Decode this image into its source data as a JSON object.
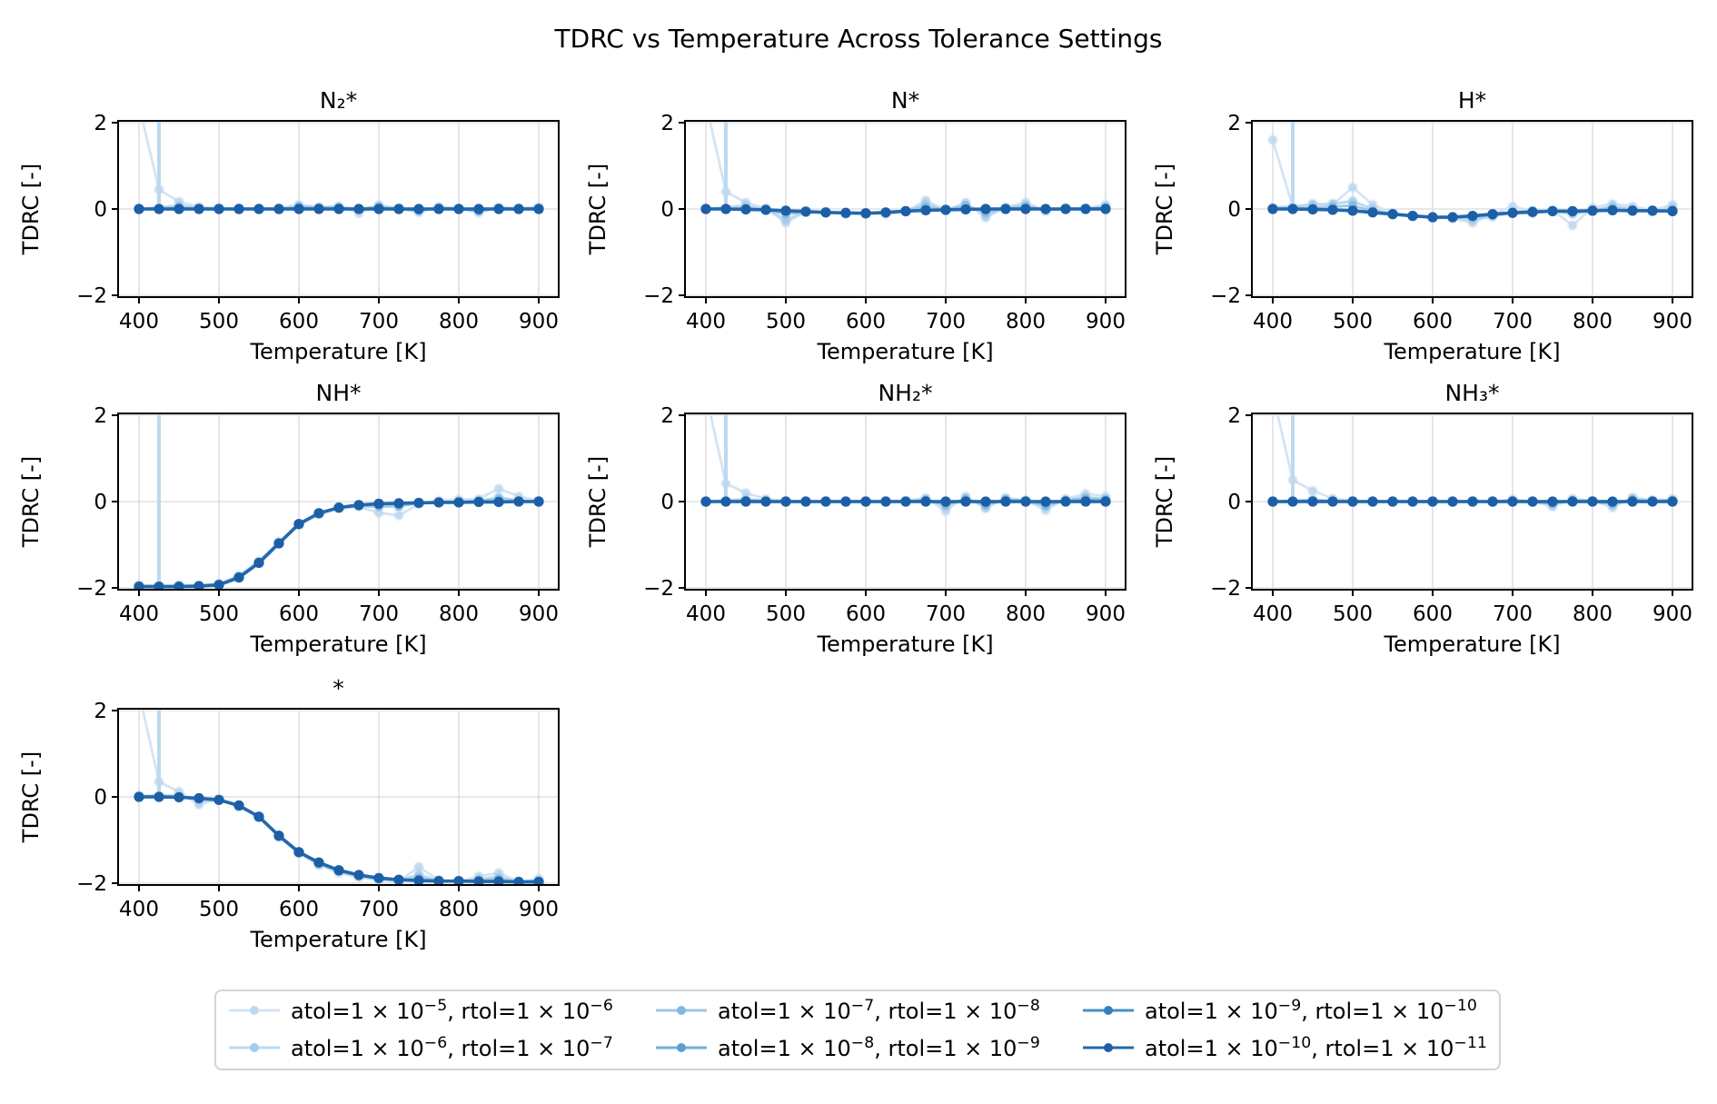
{
  "figure": {
    "title": "TDRC vs Temperature Across Tolerance Settings"
  },
  "style": {
    "grid_color": "#e0e0e0",
    "spine_color": "#000000",
    "background": "#ffffff",
    "line_colors": [
      "#d4e4f4",
      "#bdd9ef",
      "#9cc8e5",
      "#72b0d9",
      "#4690c4",
      "#2268ac"
    ],
    "marker_colors": [
      "#c0d8ee",
      "#a5cce9",
      "#81b9de",
      "#5a9fd0",
      "#3480bb",
      "#1c5fa7"
    ]
  },
  "legend": {
    "labels": [
      "atol=1 × 10^−5, rtol=1 × 10^−6",
      "atol=1 × 10^−6, rtol=1 × 10^−7",
      "atol=1 × 10^−7, rtol=1 × 10^−8",
      "atol=1 × 10^−8, rtol=1 × 10^−9",
      "atol=1 × 10^−9, rtol=1 × 10^−10",
      "atol=1 × 10^−10, rtol=1 × 10^−11"
    ]
  },
  "x_values": [
    400,
    425,
    450,
    475,
    500,
    525,
    550,
    575,
    600,
    625,
    650,
    675,
    700,
    725,
    750,
    775,
    800,
    825,
    850,
    875,
    900
  ],
  "chart_data": [
    {
      "type": "line",
      "title": "N₂*",
      "xlabel": "Temperature [K]",
      "ylabel": "TDRC [-]",
      "xticks": [
        400,
        500,
        600,
        700,
        800,
        900
      ],
      "yticks": [
        -2,
        0,
        2
      ],
      "ylim": [
        -2.05,
        2.05
      ],
      "series": [
        [
          2.4,
          0.45,
          0.17,
          0.05,
          0.02,
          0.01,
          0.01,
          0.02,
          0.1,
          0.05,
          0.07,
          -0.1,
          0.09,
          0.02,
          -0.08,
          0.05,
          0.02,
          -0.09,
          0.04,
          0.02,
          0.05
        ],
        [
          0,
          50,
          0.08,
          0.02,
          0.01,
          0,
          0,
          0,
          0.03,
          0.02,
          0.02,
          0,
          0.04,
          0,
          -0.03,
          0.02,
          0,
          -0.03,
          0.01,
          0,
          0.01
        ],
        [
          0,
          0,
          0.04,
          0.01,
          0,
          0,
          0,
          0,
          0.06,
          0.03,
          0.04,
          0,
          0.06,
          0,
          -0.04,
          0.03,
          0,
          -0.05,
          0.02,
          0,
          0.02
        ],
        [
          0,
          0,
          0.01,
          0,
          0,
          0,
          0,
          0,
          0.02,
          0.01,
          0.01,
          0,
          0.02,
          0,
          -0.01,
          0.01,
          0,
          -0.02,
          0.01,
          0,
          0.01
        ],
        [
          0,
          0,
          0,
          0,
          0,
          0,
          0,
          0,
          0,
          0,
          0,
          0,
          0,
          0,
          0,
          0,
          0,
          0,
          0,
          0,
          0
        ],
        [
          0,
          0,
          0,
          0,
          0,
          0,
          0,
          0,
          0,
          0,
          0,
          0,
          0,
          0,
          0,
          0,
          0,
          0,
          0,
          0,
          0
        ]
      ]
    },
    {
      "type": "line",
      "title": "N*",
      "xlabel": "Temperature [K]",
      "ylabel": "TDRC [-]",
      "xticks": [
        400,
        500,
        600,
        700,
        800,
        900
      ],
      "yticks": [
        -2,
        0,
        2
      ],
      "ylim": [
        -2.05,
        2.05
      ],
      "series": [
        [
          2.45,
          0.4,
          0.15,
          0.02,
          -0.32,
          -0.06,
          -0.06,
          -0.11,
          -0.1,
          -0.12,
          -0.06,
          0.2,
          -0.03,
          0.15,
          -0.2,
          0.04,
          0.15,
          -0.05,
          0.02,
          0.01,
          0.1
        ],
        [
          0,
          50,
          0.08,
          -0.01,
          -0.25,
          -0.07,
          -0.08,
          -0.1,
          -0.1,
          -0.09,
          -0.05,
          0.12,
          -0.02,
          0.1,
          -0.14,
          0.02,
          0.1,
          -0.03,
          0.01,
          0,
          0.06
        ],
        [
          0,
          0,
          0.02,
          -0.02,
          -0.12,
          -0.07,
          -0.08,
          -0.09,
          -0.1,
          -0.07,
          -0.04,
          0.05,
          -0.02,
          0.08,
          -0.08,
          0.01,
          0.06,
          -0.02,
          0,
          0,
          0.04
        ],
        [
          0,
          0,
          -0.01,
          -0.02,
          -0.04,
          -0.06,
          -0.08,
          -0.09,
          -0.1,
          -0.08,
          -0.05,
          -0.03,
          -0.02,
          -0.01,
          0,
          0,
          0,
          0,
          0,
          0,
          0
        ],
        [
          0,
          0,
          -0.01,
          -0.02,
          -0.04,
          -0.06,
          -0.08,
          -0.09,
          -0.1,
          -0.08,
          -0.05,
          -0.03,
          -0.02,
          -0.01,
          0,
          0,
          0,
          0,
          0,
          0,
          0
        ],
        [
          0,
          0,
          -0.01,
          -0.02,
          -0.04,
          -0.06,
          -0.08,
          -0.09,
          -0.1,
          -0.08,
          -0.05,
          -0.03,
          -0.02,
          -0.01,
          0,
          0,
          0,
          0,
          0,
          0,
          0
        ]
      ]
    },
    {
      "type": "line",
      "title": "H*",
      "xlabel": "Temperature [K]",
      "ylabel": "TDRC [-]",
      "xticks": [
        400,
        500,
        600,
        700,
        800,
        900
      ],
      "yticks": [
        -2,
        0,
        2
      ],
      "ylim": [
        -2.05,
        2.05
      ],
      "series": [
        [
          1.6,
          0.05,
          0.12,
          0.1,
          0.5,
          0.1,
          -0.1,
          -0.15,
          -0.2,
          -0.22,
          -0.32,
          -0.12,
          0.06,
          -0.05,
          -0.03,
          -0.38,
          0.03,
          0.12,
          0.06,
          -0.03,
          0.1
        ],
        [
          0.03,
          50,
          0.1,
          0.12,
          0.18,
          0,
          -0.12,
          -0.17,
          -0.2,
          -0.2,
          -0.25,
          -0.18,
          -0.08,
          -0.1,
          -0.05,
          -0.12,
          -0.04,
          0.06,
          0,
          -0.05,
          0.03
        ],
        [
          0,
          0.02,
          0.03,
          0.05,
          0.08,
          -0.05,
          -0.12,
          -0.16,
          -0.19,
          -0.18,
          -0.2,
          -0.15,
          -0.07,
          -0.04,
          -0.05,
          -0.08,
          -0.03,
          0.02,
          -0.02,
          -0.04,
          -0.02
        ],
        [
          0,
          0,
          -0.01,
          -0.02,
          -0.04,
          -0.08,
          -0.12,
          -0.16,
          -0.19,
          -0.19,
          -0.16,
          -0.12,
          -0.09,
          -0.07,
          -0.05,
          -0.05,
          -0.04,
          -0.03,
          -0.04,
          -0.04,
          -0.05
        ],
        [
          0,
          0,
          -0.01,
          -0.02,
          -0.04,
          -0.08,
          -0.12,
          -0.16,
          -0.19,
          -0.19,
          -0.16,
          -0.12,
          -0.09,
          -0.07,
          -0.05,
          -0.05,
          -0.04,
          -0.03,
          -0.04,
          -0.04,
          -0.05
        ],
        [
          0,
          0,
          -0.01,
          -0.02,
          -0.04,
          -0.08,
          -0.12,
          -0.16,
          -0.19,
          -0.19,
          -0.16,
          -0.12,
          -0.09,
          -0.07,
          -0.05,
          -0.05,
          -0.04,
          -0.03,
          -0.04,
          -0.04,
          -0.05
        ]
      ]
    },
    {
      "type": "line",
      "title": "NH*",
      "xlabel": "Temperature [K]",
      "ylabel": "TDRC [-]",
      "xticks": [
        400,
        500,
        600,
        700,
        800,
        900
      ],
      "yticks": [
        -2,
        0,
        2
      ],
      "ylim": [
        -2.05,
        2.05
      ],
      "series": [
        [
          -1.93,
          -1.95,
          -1.93,
          -1.94,
          -1.9,
          -1.71,
          -1.38,
          -0.93,
          -0.55,
          -0.3,
          -0.16,
          -0.12,
          -0.26,
          -0.32,
          -0.06,
          0.02,
          0.05,
          0.06,
          0.3,
          0.12,
          0.02
        ],
        [
          -1.97,
          50,
          -1.96,
          -1.96,
          -1.92,
          -1.75,
          -1.41,
          -0.96,
          -0.52,
          -0.27,
          -0.14,
          -0.09,
          -0.08,
          -0.12,
          -0.03,
          -0.01,
          0.01,
          0.01,
          0.1,
          0.03,
          0
        ],
        [
          -1.96,
          -1.97,
          -1.96,
          -1.95,
          -1.92,
          -1.74,
          -1.4,
          -0.95,
          -0.53,
          -0.28,
          -0.15,
          -0.1,
          -0.12,
          -0.1,
          -0.04,
          -0.02,
          0,
          0.02,
          0.05,
          0.02,
          0
        ],
        [
          -1.97,
          -1.97,
          -1.97,
          -1.96,
          -1.93,
          -1.76,
          -1.42,
          -0.97,
          -0.52,
          -0.27,
          -0.14,
          -0.08,
          -0.05,
          -0.04,
          -0.03,
          -0.02,
          -0.02,
          -0.01,
          -0.01,
          0,
          0
        ],
        [
          -1.97,
          -1.97,
          -1.97,
          -1.96,
          -1.93,
          -1.76,
          -1.42,
          -0.97,
          -0.52,
          -0.27,
          -0.14,
          -0.08,
          -0.05,
          -0.04,
          -0.03,
          -0.02,
          -0.02,
          -0.01,
          -0.01,
          0,
          0
        ],
        [
          -1.97,
          -1.97,
          -1.97,
          -1.96,
          -1.93,
          -1.76,
          -1.42,
          -0.97,
          -0.52,
          -0.27,
          -0.14,
          -0.08,
          -0.05,
          -0.04,
          -0.03,
          -0.02,
          -0.02,
          -0.01,
          -0.01,
          0,
          0
        ]
      ]
    },
    {
      "type": "line",
      "title": "NH₂*",
      "xlabel": "Temperature [K]",
      "ylabel": "TDRC [-]",
      "xticks": [
        400,
        500,
        600,
        700,
        800,
        900
      ],
      "yticks": [
        -2,
        0,
        2
      ],
      "ylim": [
        -2.05,
        2.05
      ],
      "series": [
        [
          2.5,
          0.42,
          0.2,
          0.06,
          0.02,
          0,
          0.01,
          0,
          0.02,
          0.01,
          0.02,
          0.08,
          -0.22,
          0.12,
          -0.16,
          0.09,
          0.03,
          -0.2,
          0.06,
          0.18,
          0.12
        ],
        [
          0,
          50,
          0.06,
          0.02,
          0,
          0,
          0,
          0,
          0,
          0,
          0,
          0.06,
          -0.12,
          0.08,
          -0.12,
          0.06,
          0.02,
          -0.12,
          0.04,
          0.1,
          0.06
        ],
        [
          0,
          0,
          0.03,
          0.01,
          0,
          0,
          0,
          0,
          0,
          0,
          0,
          0.04,
          -0.08,
          0.06,
          -0.08,
          0.05,
          0.02,
          -0.1,
          0.03,
          0.08,
          0.05
        ],
        [
          0,
          0,
          0.01,
          0,
          0,
          0,
          0,
          0,
          0,
          0,
          0,
          0.02,
          -0.03,
          0.02,
          -0.03,
          0.02,
          0.01,
          -0.04,
          0.01,
          0.03,
          0.02
        ],
        [
          0,
          0,
          0,
          0,
          0,
          0,
          0,
          0,
          0,
          0,
          0,
          0,
          0,
          0,
          0,
          0,
          0,
          0,
          0,
          0,
          0
        ],
        [
          0,
          0,
          0,
          0,
          0,
          0,
          0,
          0,
          0,
          0,
          0,
          0,
          0,
          0,
          0,
          0,
          0,
          0,
          0,
          0,
          0
        ]
      ]
    },
    {
      "type": "line",
      "title": "NH₃*",
      "xlabel": "Temperature [K]",
      "ylabel": "TDRC [-]",
      "xticks": [
        400,
        500,
        600,
        700,
        800,
        900
      ],
      "yticks": [
        -2,
        0,
        2
      ],
      "ylim": [
        -2.05,
        2.05
      ],
      "series": [
        [
          2.5,
          0.5,
          0.25,
          0.07,
          0.02,
          0,
          0,
          0,
          0.02,
          0,
          0.02,
          0,
          0.05,
          0,
          -0.12,
          0.06,
          0.02,
          -0.14,
          0.1,
          0.03,
          0.06
        ],
        [
          0,
          50,
          0.05,
          0.02,
          0,
          0,
          0,
          0,
          0,
          0,
          0,
          0,
          0.03,
          0,
          -0.07,
          0.04,
          0.01,
          -0.08,
          0.06,
          0.02,
          0.04
        ],
        [
          0,
          0,
          0.02,
          0.01,
          0,
          0,
          0,
          0,
          0,
          0,
          0,
          0,
          0.02,
          0,
          -0.05,
          0.03,
          0.01,
          -0.06,
          0.05,
          0.01,
          0.03
        ],
        [
          0,
          0,
          0.01,
          0,
          0,
          0,
          0,
          0,
          0,
          0,
          0,
          0,
          0.01,
          0,
          -0.02,
          0.01,
          0,
          -0.02,
          0.02,
          0,
          0.01
        ],
        [
          0,
          0,
          0,
          0,
          0,
          0,
          0,
          0,
          0,
          0,
          0,
          0,
          0,
          0,
          0,
          0,
          0,
          0,
          0,
          0,
          0
        ],
        [
          0,
          0,
          0,
          0,
          0,
          0,
          0,
          0,
          0,
          0,
          0,
          0,
          0,
          0,
          0,
          0,
          0,
          0,
          0,
          0,
          0
        ]
      ]
    },
    {
      "type": "line",
      "title": "*",
      "xlabel": "Temperature [K]",
      "ylabel": "TDRC [-]",
      "xticks": [
        400,
        500,
        600,
        700,
        800,
        900
      ],
      "yticks": [
        -2,
        0,
        2
      ],
      "ylim": [
        -2.05,
        2.05
      ],
      "series": [
        [
          2.4,
          0.35,
          0.12,
          -0.18,
          -0.05,
          -0.23,
          -0.45,
          -0.93,
          -1.3,
          -1.58,
          -1.76,
          -1.86,
          -1.93,
          -1.96,
          -1.62,
          -1.93,
          -1.96,
          -1.84,
          -1.76,
          -1.96,
          -1.9
        ],
        [
          0.02,
          50,
          0.04,
          -0.1,
          -0.07,
          -0.2,
          -0.47,
          -0.91,
          -1.29,
          -1.56,
          -1.73,
          -1.84,
          -1.91,
          -1.94,
          -1.8,
          -1.95,
          -1.96,
          -1.9,
          -1.85,
          -1.97,
          -1.93
        ],
        [
          0,
          0.02,
          0,
          -0.05,
          -0.08,
          -0.21,
          -0.46,
          -0.9,
          -1.28,
          -1.55,
          -1.72,
          -1.83,
          -1.9,
          -1.93,
          -1.88,
          -1.94,
          -1.95,
          -1.93,
          -1.9,
          -1.96,
          -1.95
        ],
        [
          0,
          0,
          -0.01,
          -0.03,
          -0.07,
          -0.2,
          -0.46,
          -0.9,
          -1.28,
          -1.52,
          -1.7,
          -1.81,
          -1.88,
          -1.92,
          -1.94,
          -1.95,
          -1.95,
          -1.96,
          -1.96,
          -1.97,
          -1.97
        ],
        [
          0,
          0,
          -0.01,
          -0.03,
          -0.07,
          -0.2,
          -0.46,
          -0.9,
          -1.28,
          -1.52,
          -1.7,
          -1.81,
          -1.88,
          -1.92,
          -1.94,
          -1.95,
          -1.95,
          -1.96,
          -1.96,
          -1.97,
          -1.97
        ],
        [
          0,
          0,
          -0.01,
          -0.03,
          -0.07,
          -0.2,
          -0.46,
          -0.9,
          -1.28,
          -1.52,
          -1.7,
          -1.81,
          -1.88,
          -1.92,
          -1.94,
          -1.95,
          -1.95,
          -1.96,
          -1.96,
          -1.97,
          -1.97
        ]
      ]
    }
  ]
}
